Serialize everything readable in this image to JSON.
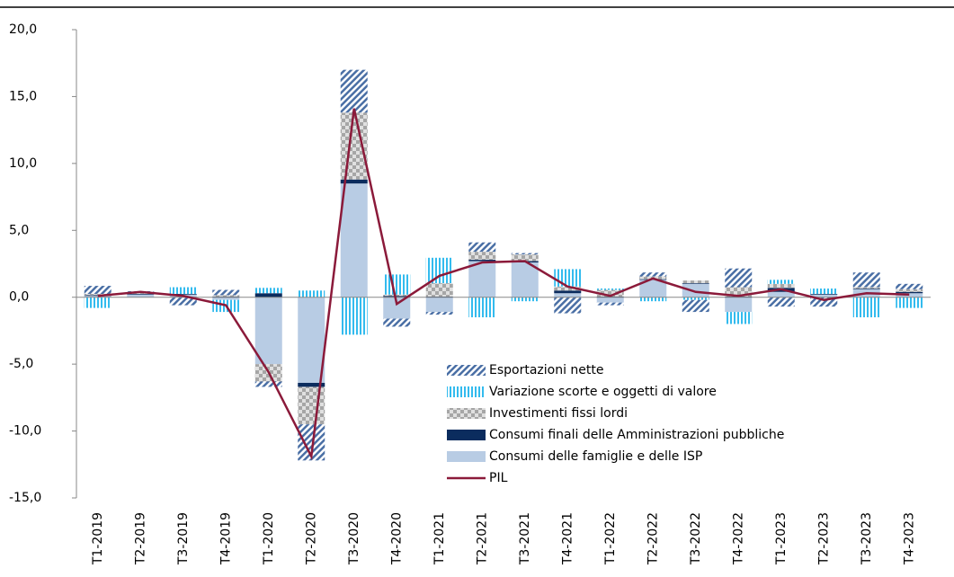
{
  "chart_data": {
    "type": "bar",
    "categories": [
      "T1-2019",
      "T2-2019",
      "T3-2019",
      "T4-2019",
      "T1-2020",
      "T2-2020",
      "T3-2020",
      "T4-2020",
      "T1-2021",
      "T2-2021",
      "T3-2021",
      "T4-2021",
      "T1-2022",
      "T2-2022",
      "T3-2022",
      "T4-2022",
      "T1-2023",
      "T2-2023",
      "T3-2023",
      "T4-2023"
    ],
    "series": [
      {
        "name": "Consumi delle famiglie e delle ISP",
        "color": "#b8cce4",
        "values": [
          0.1,
          0.2,
          0.2,
          -0.2,
          -5.0,
          -6.4,
          8.5,
          -1.6,
          -1.1,
          2.7,
          2.6,
          0.3,
          -0.4,
          1.3,
          1.0,
          -1.1,
          0.4,
          0.2,
          0.6,
          0.3
        ]
      },
      {
        "name": "Consumi finali delle Amministrazioni pubbliche",
        "color": "#0b2c5e",
        "values": [
          0.05,
          0.05,
          0.05,
          0.05,
          0.3,
          -0.3,
          0.3,
          0.1,
          0.05,
          0.1,
          0.1,
          0.2,
          0.05,
          0.05,
          0.05,
          0.05,
          0.3,
          0.05,
          0.05,
          0.1
        ]
      },
      {
        "name": "Investimenti fissi lordi",
        "color": "#a6a6a6",
        "values": [
          0.1,
          0.1,
          0.0,
          0.1,
          -1.3,
          -2.8,
          5.0,
          0.1,
          1.0,
          0.6,
          0.5,
          0.3,
          0.5,
          0.2,
          0.2,
          0.7,
          0.3,
          0.0,
          0.1,
          0.2
        ]
      },
      {
        "name": "Variazione scorte e oggetti di valore",
        "color": "#33bbee",
        "values": [
          -0.8,
          0.0,
          0.5,
          -0.9,
          0.4,
          0.5,
          -2.8,
          1.5,
          1.9,
          -1.5,
          -0.3,
          1.3,
          0.1,
          -0.3,
          -0.2,
          -0.9,
          0.3,
          0.4,
          -1.5,
          -0.8
        ]
      },
      {
        "name": "Esportazioni nette",
        "color": "#4a6fa5",
        "values": [
          0.6,
          0.1,
          -0.6,
          0.4,
          -0.4,
          -2.7,
          3.2,
          -0.6,
          -0.2,
          0.7,
          0.1,
          -1.2,
          -0.2,
          0.3,
          -0.9,
          1.4,
          -0.7,
          -0.7,
          1.1,
          0.4
        ]
      },
      {
        "name": "PIL",
        "type": "line",
        "color": "#8b1a3a",
        "values": [
          0.1,
          0.4,
          0.1,
          -0.6,
          -5.6,
          -11.9,
          14.1,
          -0.5,
          1.6,
          2.6,
          2.7,
          0.8,
          0.1,
          1.4,
          0.4,
          0.1,
          0.6,
          -0.2,
          0.3,
          0.2
        ]
      }
    ],
    "ylim": [
      -15,
      20
    ],
    "yticks": [
      {
        "value": -15,
        "label": "-15,0"
      },
      {
        "value": -10,
        "label": "-10,0"
      },
      {
        "value": -5,
        "label": "-5,0"
      },
      {
        "value": 0,
        "label": "0,0"
      },
      {
        "value": 5,
        "label": "5,0"
      },
      {
        "value": 10,
        "label": "10,0"
      },
      {
        "value": 15,
        "label": "15,0"
      },
      {
        "value": 20,
        "label": "20,0"
      }
    ]
  }
}
